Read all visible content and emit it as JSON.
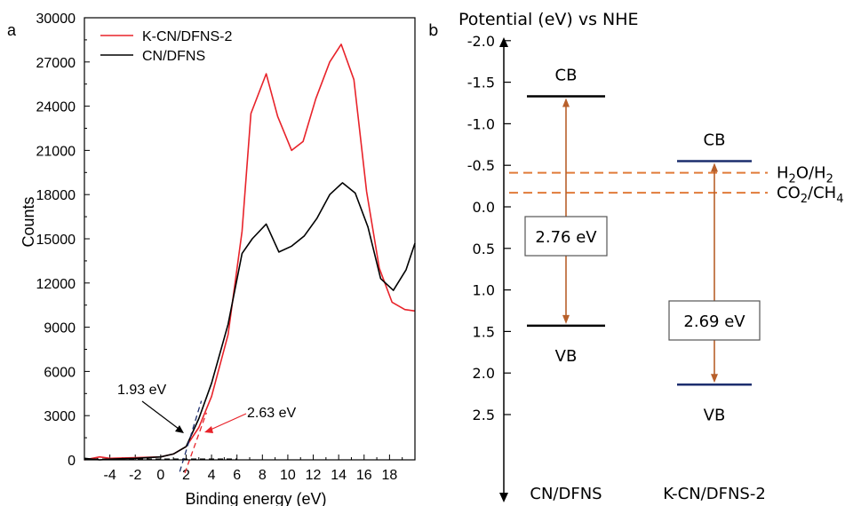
{
  "chart_data": [
    {
      "type": "line",
      "panel_label": "a",
      "xlabel": "Binding energy (eV)",
      "ylabel": "Counts",
      "xlim": [
        -6,
        20
      ],
      "ylim": [
        0,
        30000
      ],
      "x_ticks": [
        -4,
        -2,
        0,
        2,
        4,
        6,
        8,
        10,
        12,
        14,
        16,
        18
      ],
      "y_ticks": [
        0,
        3000,
        6000,
        9000,
        12000,
        15000,
        18000,
        21000,
        24000,
        27000,
        30000
      ],
      "legend_position": "top-left",
      "series": [
        {
          "name": "K-CN/DFNS-2",
          "color": "#e8232a",
          "x": [
            -6,
            -4.8,
            -4,
            -2,
            0,
            1,
            2,
            3,
            4,
            5.3,
            6.4,
            7.1,
            8.3,
            9.2,
            10.3,
            11.2,
            12.2,
            13.3,
            14.2,
            15.2,
            16.2,
            17.2,
            18.2,
            19.2,
            20
          ],
          "y": [
            0,
            200,
            100,
            150,
            200,
            400,
            900,
            2200,
            4300,
            8500,
            15500,
            23500,
            26200,
            23300,
            21000,
            21600,
            24500,
            27000,
            28200,
            25800,
            18200,
            13000,
            10700,
            10200,
            10100
          ]
        },
        {
          "name": "CN/DFNS",
          "color": "#000000",
          "x": [
            -6,
            -4.8,
            -4,
            -2,
            0,
            1,
            2,
            3,
            4,
            5.3,
            6.4,
            7.2,
            8.3,
            9.3,
            10.3,
            11.3,
            12.3,
            13.3,
            14.3,
            15.3,
            16.3,
            17.3,
            18.3,
            19.3,
            20
          ],
          "y": [
            100,
            0,
            50,
            100,
            200,
            400,
            900,
            2800,
            5200,
            9200,
            14000,
            15000,
            16000,
            14100,
            14500,
            15200,
            16400,
            18000,
            18800,
            18100,
            15800,
            12300,
            11500,
            12900,
            14700
          ]
        }
      ],
      "baseline": {
        "color": "#000000",
        "x": [
          -6,
          6
        ],
        "y": [
          50,
          50
        ]
      },
      "tangents": [
        {
          "series": "CN/DFNS",
          "color": "#1c2e6e",
          "x": [
            1.5,
            3.2
          ],
          "y": [
            -800,
            4000
          ]
        },
        {
          "series": "K-CN/DFNS-2",
          "color": "#e8232a",
          "x": [
            1.9,
            3.6
          ],
          "y": [
            -900,
            3200
          ]
        }
      ],
      "annotations": [
        {
          "text": "1.93 eV",
          "arrow_to": [
            1.93,
            50
          ]
        },
        {
          "text": "2.63 eV",
          "arrow_to": [
            2.63,
            50
          ]
        }
      ]
    },
    {
      "type": "band_diagram",
      "panel_label": "b",
      "ylabel": "Potential (eV) vs NHE",
      "y_inverted": true,
      "ylim": [
        -2.6,
        2.75
      ],
      "y_ticks": [
        "-2.0",
        "-1.5",
        "-1.0",
        "-0.5",
        "0.0",
        "0.5",
        "1.0",
        "1.5",
        "2.0",
        "2.5"
      ],
      "materials": [
        {
          "name": "CN/DFNS",
          "cb": -1.33,
          "vb": 1.43,
          "gap_label": "2.76 eV",
          "line_color": "#000000",
          "cb_label": "CB",
          "vb_label": "VB"
        },
        {
          "name": "K-CN/DFNS-2",
          "cb": -0.55,
          "vb": 2.14,
          "gap_label": "2.69 eV",
          "line_color": "#1c2e6e",
          "cb_label": "CB",
          "vb_label": "VB"
        }
      ],
      "arrow_color": "#b8602b",
      "redox_levels": [
        {
          "label": "H2O/H2",
          "main": [
            "H",
            "O/H"
          ],
          "subs": [
            "2",
            "2"
          ],
          "value": -0.41
        },
        {
          "label": "CO2/CH4",
          "main": [
            "CO",
            "/CH"
          ],
          "subs": [
            "2",
            "4"
          ],
          "value": -0.17
        }
      ],
      "redox_color": "#e07b39"
    }
  ]
}
